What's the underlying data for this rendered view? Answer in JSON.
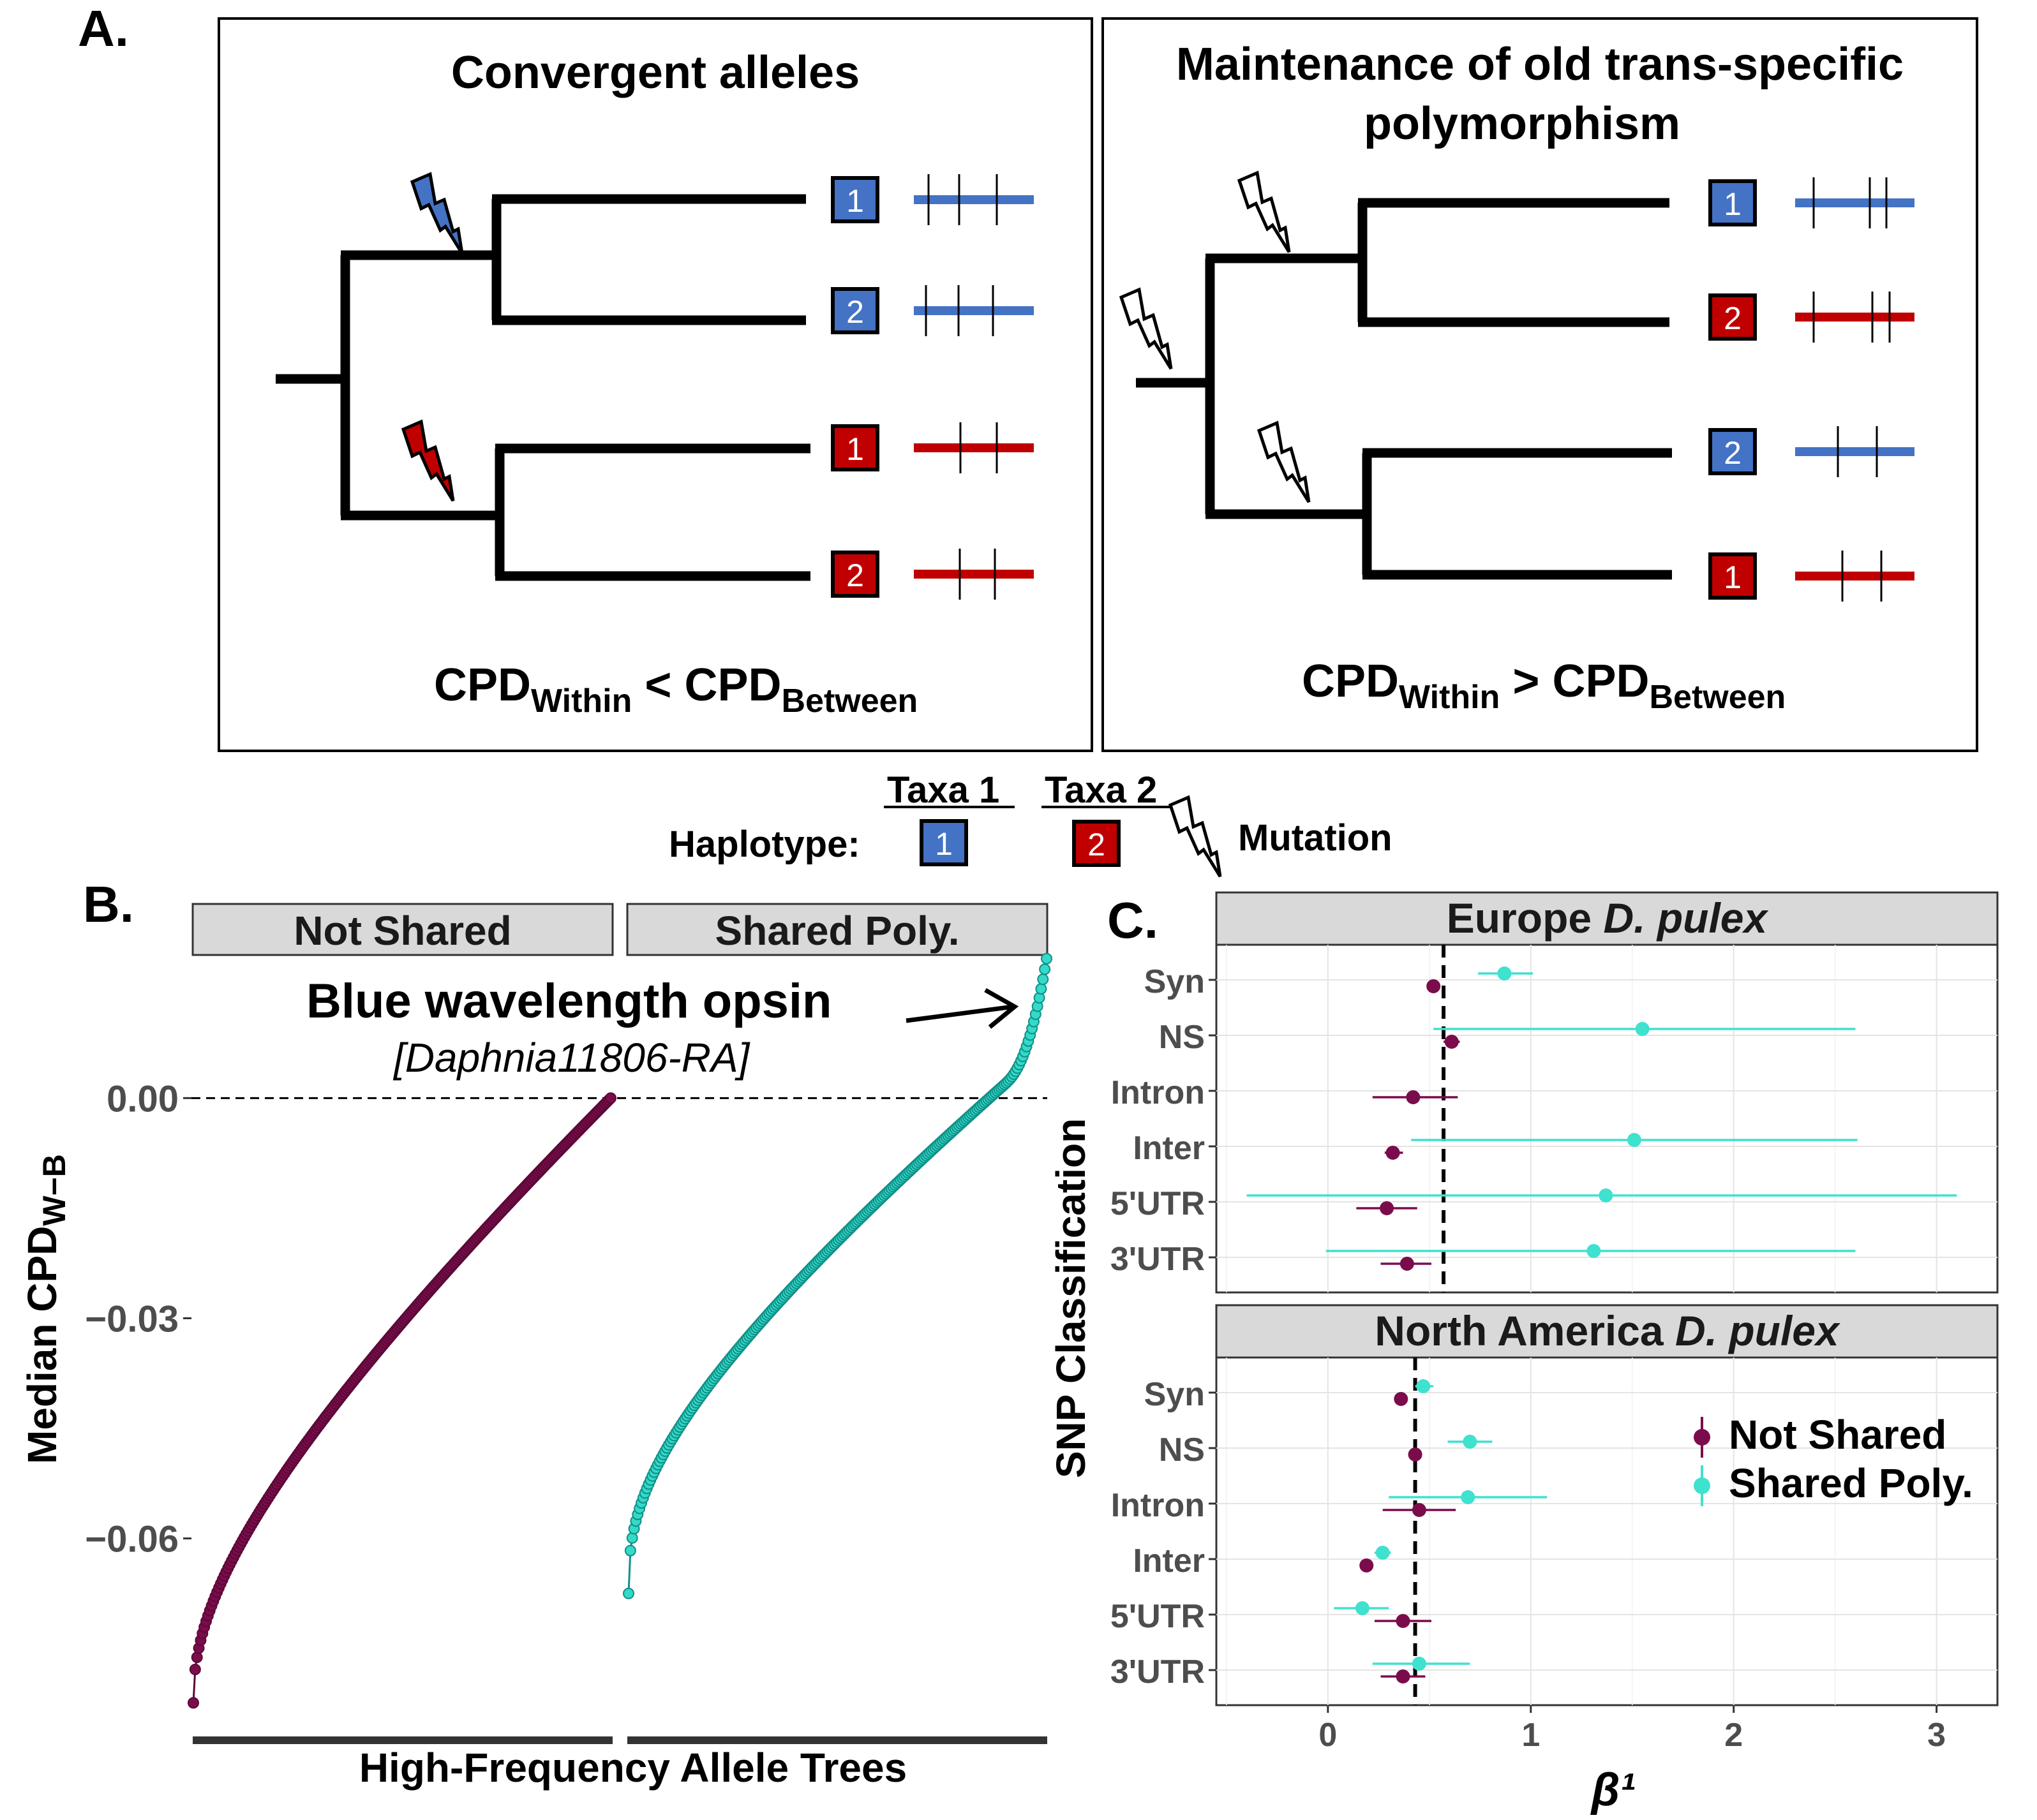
{
  "panel_a": {
    "label": "A.",
    "left": {
      "title": "Convergent alleles",
      "formula": {
        "main1": "CPD",
        "sub1": "Within",
        "op": " < ",
        "main2": "CPD",
        "sub2": "Between"
      },
      "tips": [
        {
          "hap": "1",
          "taxa": 1,
          "ticks": 3
        },
        {
          "hap": "2",
          "taxa": 1,
          "ticks": 3
        },
        {
          "hap": "1",
          "taxa": 2,
          "ticks": 2
        },
        {
          "hap": "2",
          "taxa": 2,
          "ticks": 2
        }
      ]
    },
    "right": {
      "title_line1": "Maintenance of old trans-specific",
      "title_line2": "polymorphism",
      "formula": {
        "main1": "CPD",
        "sub1": "Within",
        "op": " > ",
        "main2": "CPD",
        "sub2": "Between"
      },
      "tips": [
        {
          "hap": "1",
          "taxa": 1,
          "ticks": 3
        },
        {
          "hap": "2",
          "taxa": 2,
          "ticks": 3
        },
        {
          "hap": "2",
          "taxa": 1,
          "ticks": 2
        },
        {
          "hap": "1",
          "taxa": 2,
          "ticks": 2
        }
      ]
    },
    "legend": {
      "taxa1": "Taxa 1",
      "taxa2": "Taxa 2",
      "haplotype_label": "Haplotype:",
      "hap1": "1",
      "hap2": "2",
      "mutation_label": "Mutation"
    }
  },
  "panel_b": {
    "label": "B.",
    "facets": [
      "Not Shared",
      "Shared Poly."
    ],
    "annotation_title": "Blue wavelength opsin",
    "annotation_sub": "[Daphnia11806-RA]",
    "chart_data": {
      "type": "scatter",
      "ylabel_main": "Median CPD",
      "ylabel_sub": "W−B",
      "xlabel": "High-Frequency Allele Trees",
      "yticks": [
        "0.00",
        "−0.03",
        "−0.06"
      ],
      "ytick_values": [
        0,
        -0.03,
        -0.06
      ],
      "ylim": [
        -0.0875,
        0.0195
      ],
      "hline": 0,
      "series": [
        {
          "name": "Not Shared",
          "color": "#7b0c4c",
          "n": 230,
          "y_min": -0.0824,
          "y_max": 0.0
        },
        {
          "name": "Shared Poly.",
          "color": "#2fd3c2",
          "n": 230,
          "y_min": -0.0675,
          "y_max": 0.019
        }
      ]
    }
  },
  "panel_c": {
    "label": "C.",
    "ylabel": "SNP Classification",
    "xlabel": "β¹",
    "legend": {
      "not_shared": "Not Shared",
      "shared": "Shared Poly."
    },
    "colors": {
      "not_shared": "#7b0c4c",
      "shared": "#3fe1cf"
    },
    "chart_data": [
      {
        "type": "scatter",
        "title_main": "Europe ",
        "title_ital": "D. pulex",
        "categories": [
          "Syn",
          "NS",
          "Intron",
          "Inter",
          "5'UTR",
          "3'UTR"
        ],
        "xticks": [
          "0",
          "1",
          "2",
          "3"
        ],
        "xlim": [
          -0.55,
          3.3
        ],
        "vline": 0.57,
        "series": [
          {
            "name": "Not Shared",
            "est": [
              0.52,
              0.61,
              0.42,
              0.32,
              0.29,
              0.39
            ],
            "lo": [
              0.5,
              0.57,
              0.22,
              0.28,
              0.14,
              0.26
            ],
            "hi": [
              0.55,
              0.65,
              0.64,
              0.37,
              0.44,
              0.51
            ]
          },
          {
            "name": "Shared Poly.",
            "est": [
              0.87,
              1.55,
              null,
              1.51,
              1.37,
              1.31
            ],
            "lo": [
              0.74,
              0.52,
              null,
              0.41,
              -0.4,
              -0.01
            ],
            "hi": [
              1.01,
              2.6,
              null,
              2.61,
              3.1,
              2.6
            ]
          }
        ]
      },
      {
        "type": "scatter",
        "title_main": "North America ",
        "title_ital": "D. pulex",
        "categories": [
          "Syn",
          "NS",
          "Intron",
          "Inter",
          "5'UTR",
          "3'UTR"
        ],
        "xticks": [
          "0",
          "1",
          "2",
          "3"
        ],
        "xlim": [
          -0.55,
          3.3
        ],
        "vline": 0.43,
        "series": [
          {
            "name": "Not Shared",
            "est": [
              0.36,
              0.43,
              0.45,
              0.19,
              0.37,
              0.37
            ],
            "lo": [
              0.34,
              0.41,
              0.27,
              0.17,
              0.23,
              0.26
            ],
            "hi": [
              0.38,
              0.46,
              0.63,
              0.22,
              0.51,
              0.48
            ]
          },
          {
            "name": "Shared Poly.",
            "est": [
              0.47,
              0.7,
              0.69,
              0.27,
              0.17,
              0.45
            ],
            "lo": [
              0.43,
              0.59,
              0.3,
              0.23,
              0.03,
              0.22
            ],
            "hi": [
              0.52,
              0.81,
              1.08,
              0.31,
              0.3,
              0.7
            ]
          }
        ]
      }
    ]
  }
}
